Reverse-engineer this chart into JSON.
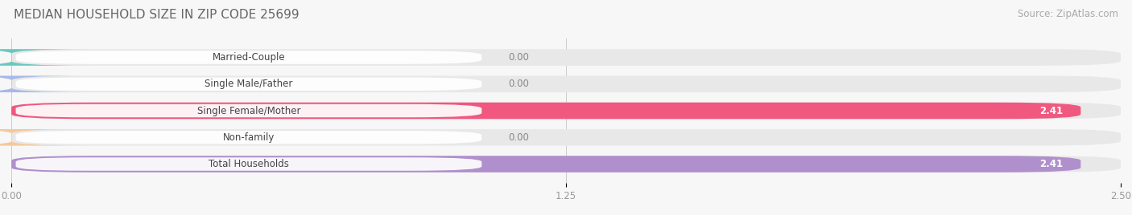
{
  "title": "MEDIAN HOUSEHOLD SIZE IN ZIP CODE 25699",
  "source": "Source: ZipAtlas.com",
  "categories": [
    "Married-Couple",
    "Single Male/Father",
    "Single Female/Mother",
    "Non-family",
    "Total Households"
  ],
  "values": [
    0.0,
    0.0,
    2.41,
    0.0,
    2.41
  ],
  "bar_colors": [
    "#68C8C0",
    "#A8B8E8",
    "#F05880",
    "#F5C89A",
    "#B090CC"
  ],
  "label_colors": [
    "#555555",
    "#555555",
    "#ffffff",
    "#555555",
    "#ffffff"
  ],
  "value_colors_inside": [
    "#ffffff",
    "#ffffff",
    "#ffffff",
    "#ffffff",
    "#ffffff"
  ],
  "xlim": [
    0,
    2.5
  ],
  "xticks": [
    0.0,
    1.25,
    2.5
  ],
  "xtick_labels": [
    "0.00",
    "1.25",
    "2.50"
  ],
  "background_color": "#f7f7f7",
  "bar_bg_color": "#e8e8e8",
  "title_fontsize": 11,
  "source_fontsize": 8.5,
  "label_fontsize": 8.5,
  "value_fontsize": 8.5,
  "tick_fontsize": 8.5,
  "bar_height": 0.62
}
